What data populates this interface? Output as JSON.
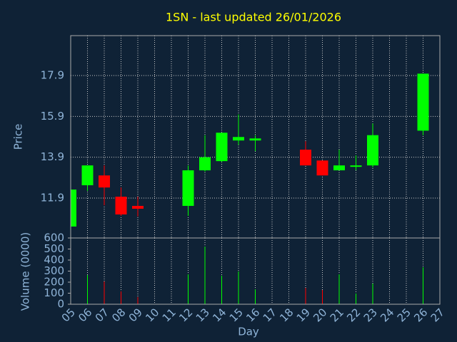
{
  "chart_data": [
    {
      "type": "candlestick",
      "title": "1SN - last updated 26/01/2026",
      "ylabel": "Price",
      "categories": [
        "05",
        "06",
        "07",
        "08",
        "09",
        "10",
        "11",
        "12",
        "13",
        "14",
        "15",
        "16",
        "17",
        "18",
        "19",
        "20",
        "21",
        "22",
        "23",
        "24",
        "25",
        "26",
        "27"
      ],
      "open": [
        10.51,
        12.53,
        13.01,
        11.97,
        11.52,
        null,
        null,
        11.52,
        13.26,
        13.71,
        14.72,
        14.72,
        null,
        null,
        14.27,
        13.74,
        13.26,
        13.43,
        13.5,
        null,
        null,
        15.2,
        null
      ],
      "high": [
        12.32,
        13.5,
        13.5,
        12.42,
        11.97,
        null,
        null,
        13.5,
        14.98,
        15.1,
        16.0,
        14.98,
        null,
        null,
        14.68,
        13.74,
        14.27,
        13.99,
        15.55,
        null,
        null,
        17.99,
        null
      ],
      "low": [
        10.51,
        12.25,
        11.55,
        11.03,
        11.0,
        null,
        null,
        11.03,
        13.19,
        13.67,
        14.51,
        14.2,
        null,
        null,
        13.5,
        13.01,
        13.26,
        13.26,
        13.4,
        null,
        null,
        14.98,
        null
      ],
      "close": [
        12.32,
        13.5,
        12.42,
        11.1,
        11.38,
        null,
        null,
        13.26,
        13.9,
        15.1,
        14.89,
        14.82,
        null,
        null,
        13.5,
        13.01,
        13.5,
        13.5,
        14.98,
        null,
        null,
        17.99,
        null
      ],
      "up_color": "#00ff00",
      "down_color": "#ff0000",
      "ylim": [
        9.95,
        19.85
      ],
      "yticks": [
        11.9,
        13.9,
        15.9,
        17.9
      ],
      "grid": true
    },
    {
      "type": "bar",
      "ylabel": "Volume (0000)",
      "xlabel": "Day",
      "categories": [
        "05",
        "06",
        "07",
        "08",
        "09",
        "10",
        "11",
        "12",
        "13",
        "14",
        "15",
        "16",
        "17",
        "18",
        "19",
        "20",
        "21",
        "22",
        "23",
        "24",
        "25",
        "26",
        "27"
      ],
      "values": [
        0,
        264,
        206,
        116,
        65,
        null,
        null,
        271,
        522,
        258,
        297,
        135,
        null,
        null,
        148,
        129,
        271,
        97,
        187,
        null,
        null,
        335,
        null
      ],
      "ylim": [
        0,
        600
      ],
      "yticks": [
        0,
        100,
        200,
        300,
        400,
        500,
        600
      ],
      "grid": true
    }
  ]
}
